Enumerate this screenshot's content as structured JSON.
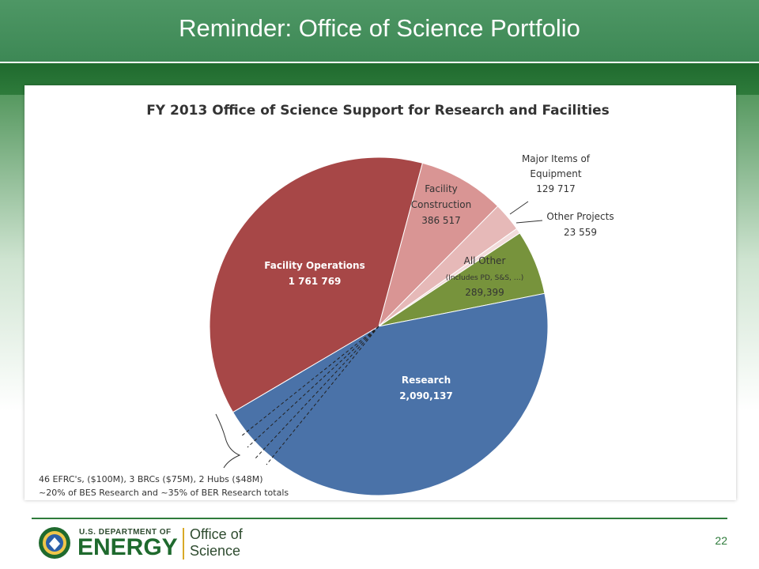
{
  "slide": {
    "title": "Reminder:  Office of Science Portfolio",
    "page_number": "22"
  },
  "footer": {
    "agency_small": "U.S. DEPARTMENT OF",
    "agency_big": "ENERGY",
    "office_line1": "Office of",
    "office_line2": "Science"
  },
  "chart_data": {
    "type": "pie",
    "title": "FY 2013 Office of Science Support for Research and Facilities",
    "start_angle_deg": 15,
    "slices": [
      {
        "name": "Facility Construction",
        "value": 386517,
        "display_value": "386 517",
        "color": "#d99594"
      },
      {
        "name": "Major Items of Equipment",
        "value": 129717,
        "display_value": "129 717",
        "color": "#e6b9b8"
      },
      {
        "name": "Other Projects",
        "value": 23559,
        "display_value": "23 559",
        "color": "#f2dcdb"
      },
      {
        "name": "All Other",
        "value": 289399,
        "display_value": "289,399",
        "note": "(Includes PD, S&S, …)",
        "color": "#77933c"
      },
      {
        "name": "Research",
        "value": 2090137,
        "display_value": "2,090,137",
        "color": "#4a72a8"
      },
      {
        "name": "Facility Operations",
        "value": 1761769,
        "display_value": "1 761 769",
        "color": "#a74747"
      }
    ],
    "annotation": {
      "line1": "46 EFRC's, ($100M), 3 BRCs ($75M), 2 Hubs ($48M)",
      "line2": "~20% of BES Research and ~35% of BER Research totals"
    }
  }
}
